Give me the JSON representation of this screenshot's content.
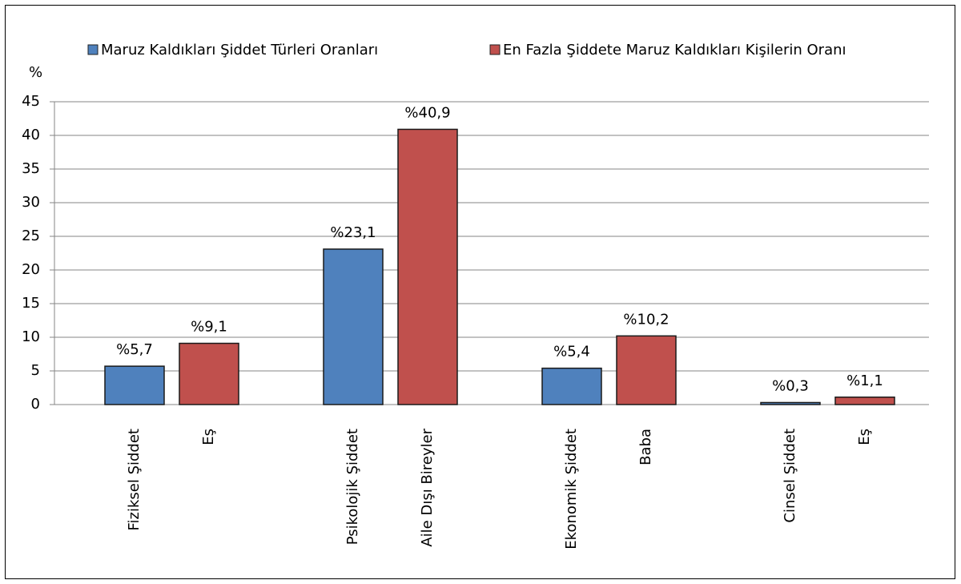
{
  "chart_data": {
    "type": "bar",
    "y_label": "%",
    "ylim": [
      0,
      45
    ],
    "yticks": [
      0,
      5,
      10,
      15,
      20,
      25,
      30,
      35,
      40,
      45
    ],
    "grid": true,
    "legend": "top",
    "series": [
      {
        "name": "Maruz Kaldıkları Şiddet Türleri Oranları",
        "color": "#4f81bd",
        "categories": [
          "Fiziksel Şiddet",
          "Psikolojik Şiddet",
          "Ekonomik Şiddet",
          "Cinsel Şiddet"
        ],
        "values": [
          5.7,
          23.1,
          5.4,
          0.3
        ],
        "value_labels": [
          "%5,7",
          "%23,1",
          "%5,4",
          "%0,3"
        ]
      },
      {
        "name": "En Fazla Şiddete Maruz Kaldıkları Kişilerin Oranı",
        "color": "#c0504d",
        "categories": [
          "Eş",
          "Aile Dışı Bireyler",
          "Baba",
          "Eş"
        ],
        "values": [
          9.1,
          40.9,
          10.2,
          1.1
        ],
        "value_labels": [
          "%9,1",
          "%40,9",
          "%10,2",
          "%1,1"
        ]
      }
    ]
  }
}
